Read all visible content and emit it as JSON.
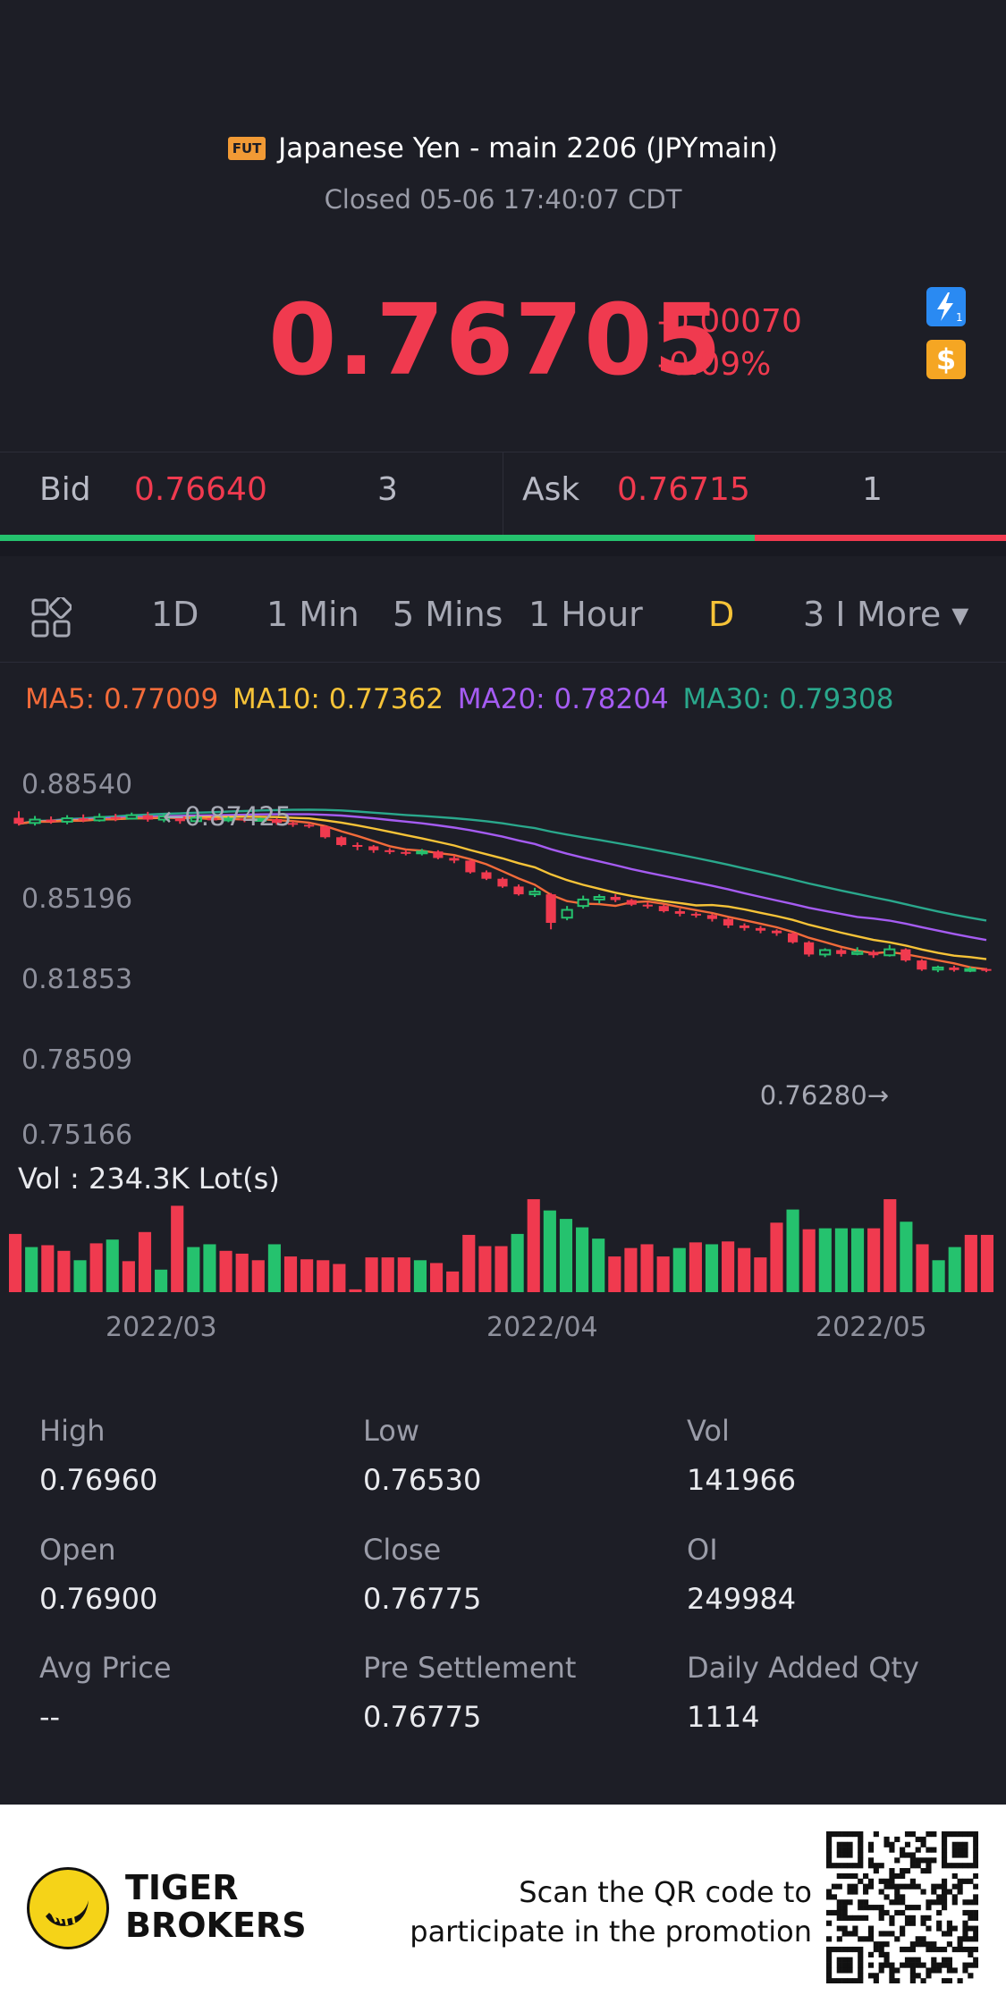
{
  "header": {
    "badge": "FUT",
    "title": "Japanese Yen - main 2206 (JPYmain)",
    "status": "Closed 05-06 17:40:07 CDT",
    "price": "0.76705",
    "change_abs": "-0.00070",
    "change_pct": "-0.09%",
    "badge_icons": [
      "lightning-icon",
      "dollar-icon"
    ],
    "dollar_symbol": "$"
  },
  "bidask": {
    "bid_label": "Bid",
    "bid_value": "0.76640",
    "bid_qty": "3",
    "ask_label": "Ask",
    "ask_value": "0.76715",
    "ask_qty": "1",
    "bid_share": 0.75
  },
  "tabs": {
    "items": [
      "1D",
      "1 Min",
      "5 Mins",
      "1 Hour",
      "D",
      "3 I",
      "More ▾"
    ],
    "active": "D"
  },
  "ma": {
    "ma5": "MA5: 0.77009",
    "ma10": "MA10: 0.77362",
    "ma20": "MA20: 0.78204",
    "ma30": "MA30: 0.79308",
    "colors": {
      "ma5": "#f26b3a",
      "ma10": "#f6c338",
      "ma20": "#a55cf2",
      "ma30": "#2aa88c"
    }
  },
  "chart_data": {
    "type": "candlestick",
    "y_ticks": [
      "0.88540",
      "0.85196",
      "0.81853",
      "0.78509",
      "0.75166"
    ],
    "y_range": [
      0.75166,
      0.8854
    ],
    "x_ticks": [
      "2022/03",
      "2022/04",
      "2022/05"
    ],
    "max_marker": "0.87425",
    "min_marker": "0.76280",
    "volume_label": "Vol  : 234.3K Lot(s)",
    "candles": [
      {
        "o": 0.8735,
        "c": 0.8712,
        "h": 0.876,
        "l": 0.8705
      },
      {
        "o": 0.8715,
        "c": 0.8728,
        "h": 0.8742,
        "l": 0.8705
      },
      {
        "o": 0.8728,
        "c": 0.872,
        "h": 0.874,
        "l": 0.8712
      },
      {
        "o": 0.872,
        "c": 0.8733,
        "h": 0.8745,
        "l": 0.871
      },
      {
        "o": 0.8733,
        "c": 0.8725,
        "h": 0.8748,
        "l": 0.8718
      },
      {
        "o": 0.8725,
        "c": 0.8738,
        "h": 0.8752,
        "l": 0.872
      },
      {
        "o": 0.8738,
        "c": 0.8732,
        "h": 0.875,
        "l": 0.8722
      },
      {
        "o": 0.8732,
        "c": 0.8745,
        "h": 0.8755,
        "l": 0.8728
      },
      {
        "o": 0.8745,
        "c": 0.8728,
        "h": 0.8758,
        "l": 0.872
      },
      {
        "o": 0.8728,
        "c": 0.874,
        "h": 0.875,
        "l": 0.8718
      },
      {
        "o": 0.874,
        "c": 0.8722,
        "h": 0.8742,
        "l": 0.8712
      },
      {
        "o": 0.8722,
        "c": 0.8735,
        "h": 0.8745,
        "l": 0.8715
      },
      {
        "o": 0.8735,
        "c": 0.8725,
        "h": 0.8742,
        "l": 0.8718
      },
      {
        "o": 0.8725,
        "c": 0.8732,
        "h": 0.874,
        "l": 0.8718
      },
      {
        "o": 0.8732,
        "c": 0.8726,
        "h": 0.8738,
        "l": 0.8718
      },
      {
        "o": 0.8726,
        "c": 0.873,
        "h": 0.8736,
        "l": 0.872
      },
      {
        "o": 0.873,
        "c": 0.8715,
        "h": 0.8734,
        "l": 0.8708
      },
      {
        "o": 0.8715,
        "c": 0.8708,
        "h": 0.8722,
        "l": 0.87
      },
      {
        "o": 0.8708,
        "c": 0.8702,
        "h": 0.8715,
        "l": 0.8695
      },
      {
        "o": 0.8702,
        "c": 0.866,
        "h": 0.8705,
        "l": 0.8655
      },
      {
        "o": 0.866,
        "c": 0.863,
        "h": 0.8665,
        "l": 0.8625
      },
      {
        "o": 0.863,
        "c": 0.8625,
        "h": 0.864,
        "l": 0.861
      },
      {
        "o": 0.8625,
        "c": 0.861,
        "h": 0.863,
        "l": 0.86
      },
      {
        "o": 0.861,
        "c": 0.8603,
        "h": 0.8618,
        "l": 0.8595
      },
      {
        "o": 0.8603,
        "c": 0.8598,
        "h": 0.8612,
        "l": 0.859
      },
      {
        "o": 0.8598,
        "c": 0.8605,
        "h": 0.8615,
        "l": 0.859
      },
      {
        "o": 0.8605,
        "c": 0.858,
        "h": 0.861,
        "l": 0.8575
      },
      {
        "o": 0.858,
        "c": 0.857,
        "h": 0.859,
        "l": 0.856
      },
      {
        "o": 0.857,
        "c": 0.8525,
        "h": 0.8575,
        "l": 0.852
      },
      {
        "o": 0.8525,
        "c": 0.85,
        "h": 0.8532,
        "l": 0.8495
      },
      {
        "o": 0.85,
        "c": 0.847,
        "h": 0.8505,
        "l": 0.8465
      },
      {
        "o": 0.847,
        "c": 0.844,
        "h": 0.8478,
        "l": 0.8435
      },
      {
        "o": 0.844,
        "c": 0.845,
        "h": 0.8465,
        "l": 0.843
      },
      {
        "o": 0.844,
        "c": 0.833,
        "h": 0.8445,
        "l": 0.8305
      },
      {
        "o": 0.835,
        "c": 0.838,
        "h": 0.8395,
        "l": 0.834
      },
      {
        "o": 0.8395,
        "c": 0.842,
        "h": 0.8435,
        "l": 0.8385
      },
      {
        "o": 0.842,
        "c": 0.843,
        "h": 0.844,
        "l": 0.8405
      },
      {
        "o": 0.843,
        "c": 0.8418,
        "h": 0.844,
        "l": 0.841
      },
      {
        "o": 0.8418,
        "c": 0.84,
        "h": 0.8422,
        "l": 0.8395
      },
      {
        "o": 0.84,
        "c": 0.8395,
        "h": 0.841,
        "l": 0.8385
      },
      {
        "o": 0.8395,
        "c": 0.8375,
        "h": 0.84,
        "l": 0.837
      },
      {
        "o": 0.8375,
        "c": 0.8365,
        "h": 0.8385,
        "l": 0.8355
      },
      {
        "o": 0.8365,
        "c": 0.836,
        "h": 0.8372,
        "l": 0.835
      },
      {
        "o": 0.836,
        "c": 0.8345,
        "h": 0.8365,
        "l": 0.8335
      },
      {
        "o": 0.8345,
        "c": 0.832,
        "h": 0.835,
        "l": 0.831
      },
      {
        "o": 0.832,
        "c": 0.831,
        "h": 0.8328,
        "l": 0.83
      },
      {
        "o": 0.831,
        "c": 0.83,
        "h": 0.8318,
        "l": 0.829
      },
      {
        "o": 0.83,
        "c": 0.829,
        "h": 0.8305,
        "l": 0.828
      },
      {
        "o": 0.829,
        "c": 0.8255,
        "h": 0.8295,
        "l": 0.825
      },
      {
        "o": 0.8255,
        "c": 0.8208,
        "h": 0.826,
        "l": 0.82
      },
      {
        "o": 0.8208,
        "c": 0.8225,
        "h": 0.8232,
        "l": 0.8198
      },
      {
        "o": 0.8225,
        "c": 0.821,
        "h": 0.8232,
        "l": 0.82
      },
      {
        "o": 0.821,
        "c": 0.8218,
        "h": 0.8236,
        "l": 0.8205
      },
      {
        "o": 0.8218,
        "c": 0.8205,
        "h": 0.8225,
        "l": 0.8195
      },
      {
        "o": 0.8205,
        "c": 0.8228,
        "h": 0.8245,
        "l": 0.82
      },
      {
        "o": 0.8228,
        "c": 0.8185,
        "h": 0.8232,
        "l": 0.818
      },
      {
        "o": 0.8185,
        "c": 0.815,
        "h": 0.819,
        "l": 0.8145
      },
      {
        "o": 0.815,
        "c": 0.8158,
        "h": 0.8165,
        "l": 0.814
      },
      {
        "o": 0.8158,
        "c": 0.8148,
        "h": 0.8165,
        "l": 0.8142
      },
      {
        "o": 0.8148,
        "c": 0.8152,
        "h": 0.816,
        "l": 0.814
      },
      {
        "o": 0.8152,
        "c": 0.8148,
        "h": 0.8156,
        "l": 0.814
      }
    ],
    "volumes": [
      {
        "v": 0.62,
        "up": false
      },
      {
        "v": 0.48,
        "up": true
      },
      {
        "v": 0.5,
        "up": false
      },
      {
        "v": 0.44,
        "up": false
      },
      {
        "v": 0.34,
        "up": true
      },
      {
        "v": 0.52,
        "up": false
      },
      {
        "v": 0.56,
        "up": true
      },
      {
        "v": 0.33,
        "up": false
      },
      {
        "v": 0.64,
        "up": false
      },
      {
        "v": 0.24,
        "up": true
      },
      {
        "v": 0.92,
        "up": false
      },
      {
        "v": 0.48,
        "up": true
      },
      {
        "v": 0.51,
        "up": true
      },
      {
        "v": 0.44,
        "up": false
      },
      {
        "v": 0.41,
        "up": false
      },
      {
        "v": 0.34,
        "up": false
      },
      {
        "v": 0.51,
        "up": true
      },
      {
        "v": 0.38,
        "up": false
      },
      {
        "v": 0.35,
        "up": false
      },
      {
        "v": 0.34,
        "up": false
      },
      {
        "v": 0.3,
        "up": false
      },
      {
        "v": 0.03,
        "up": false
      },
      {
        "v": 0.37,
        "up": false
      },
      {
        "v": 0.37,
        "up": false
      },
      {
        "v": 0.37,
        "up": false
      },
      {
        "v": 0.34,
        "up": true
      },
      {
        "v": 0.31,
        "up": false
      },
      {
        "v": 0.22,
        "up": false
      },
      {
        "v": 0.61,
        "up": false
      },
      {
        "v": 0.49,
        "up": false
      },
      {
        "v": 0.49,
        "up": false
      },
      {
        "v": 0.62,
        "up": true
      },
      {
        "v": 0.99,
        "up": false
      },
      {
        "v": 0.87,
        "up": true
      },
      {
        "v": 0.78,
        "up": true
      },
      {
        "v": 0.69,
        "up": true
      },
      {
        "v": 0.57,
        "up": true
      },
      {
        "v": 0.38,
        "up": false
      },
      {
        "v": 0.47,
        "up": false
      },
      {
        "v": 0.51,
        "up": false
      },
      {
        "v": 0.38,
        "up": false
      },
      {
        "v": 0.47,
        "up": true
      },
      {
        "v": 0.53,
        "up": false
      },
      {
        "v": 0.51,
        "up": true
      },
      {
        "v": 0.54,
        "up": false
      },
      {
        "v": 0.47,
        "up": false
      },
      {
        "v": 0.37,
        "up": false
      },
      {
        "v": 0.74,
        "up": false
      },
      {
        "v": 0.88,
        "up": true
      },
      {
        "v": 0.67,
        "up": false
      },
      {
        "v": 0.68,
        "up": true
      },
      {
        "v": 0.68,
        "up": true
      },
      {
        "v": 0.68,
        "up": true
      },
      {
        "v": 0.68,
        "up": false
      },
      {
        "v": 0.99,
        "up": false
      },
      {
        "v": 0.75,
        "up": true
      },
      {
        "v": 0.51,
        "up": false
      },
      {
        "v": 0.34,
        "up": true
      },
      {
        "v": 0.48,
        "up": true
      },
      {
        "v": 0.61,
        "up": false
      },
      {
        "v": 0.61,
        "up": false
      }
    ],
    "up_color": "#25c26e",
    "down_color": "#f03a4f"
  },
  "stats": [
    {
      "label": "High",
      "value": "0.76960"
    },
    {
      "label": "Low",
      "value": "0.76530"
    },
    {
      "label": "Vol",
      "value": "141966"
    },
    {
      "label": "Open",
      "value": "0.76900"
    },
    {
      "label": "Close",
      "value": "0.76775"
    },
    {
      "label": "OI",
      "value": "249984"
    },
    {
      "label": "Avg Price",
      "value": "--"
    },
    {
      "label": "Pre Settlement",
      "value": "0.76775"
    },
    {
      "label": "Daily Added Qty",
      "value": "1114"
    }
  ],
  "footer": {
    "brand_line1": "TIGER",
    "brand_line2": "BROKERS",
    "scan_line1": "Scan the QR code to",
    "scan_line2": "participate in the promotion"
  }
}
